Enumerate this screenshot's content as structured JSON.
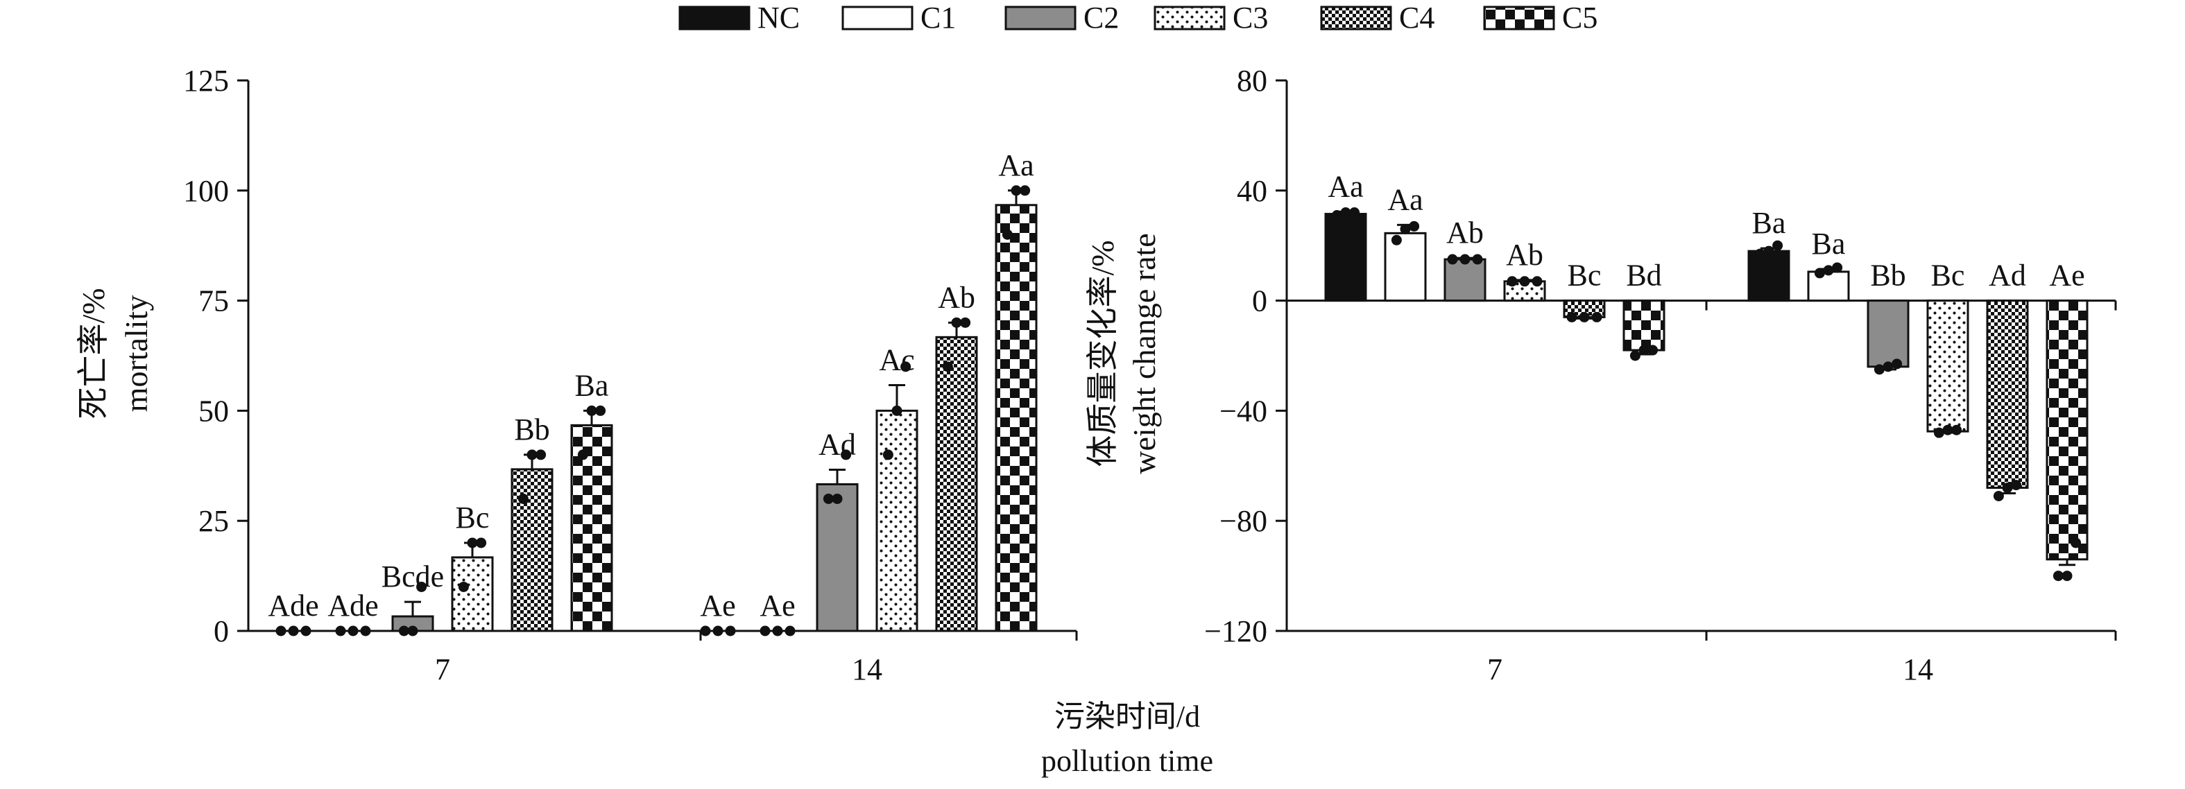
{
  "legend": {
    "entries": [
      {
        "label": "NC",
        "pattern": "solid-black"
      },
      {
        "label": "C1",
        "pattern": "white"
      },
      {
        "label": "C2",
        "pattern": "gray"
      },
      {
        "label": "C3",
        "pattern": "fine-dots"
      },
      {
        "label": "C4",
        "pattern": "fine-checker"
      },
      {
        "label": "C5",
        "pattern": "coarse-checker"
      }
    ]
  },
  "shared_xlabel": {
    "cn": "污染时间/d",
    "en": "pollution time"
  },
  "colors": {
    "ink": "#111111",
    "gray_fill": "#8c8c8c",
    "white": "#ffffff"
  },
  "chart_data": [
    {
      "type": "bar",
      "title": "",
      "categories": [
        "7",
        "14"
      ],
      "ylabel_cn": "死亡率/%",
      "ylabel_en": "mortality",
      "ylim": [
        0,
        125
      ],
      "yticks": [
        0,
        25,
        50,
        75,
        100,
        125
      ],
      "ytick_labels": [
        "0",
        "25",
        "50",
        "75",
        "100",
        "125"
      ],
      "series": [
        {
          "name": "NC",
          "values": [
            0,
            0
          ],
          "errors": [
            0,
            0
          ],
          "labels": [
            "Ade",
            "Ae"
          ],
          "points": [
            [
              0,
              0,
              0
            ],
            [
              0,
              0,
              0
            ]
          ]
        },
        {
          "name": "C1",
          "values": [
            0,
            0
          ],
          "errors": [
            0,
            0
          ],
          "labels": [
            "Ade",
            "Ae"
          ],
          "points": [
            [
              0,
              0,
              0
            ],
            [
              0,
              0,
              0
            ]
          ]
        },
        {
          "name": "C2",
          "values": [
            3.3,
            33.3
          ],
          "errors": [
            3.3,
            3.3
          ],
          "labels": [
            "Bcde",
            "Ad"
          ],
          "points": [
            [
              0,
              0,
              10
            ],
            [
              30,
              30,
              40
            ]
          ]
        },
        {
          "name": "C3",
          "values": [
            16.7,
            50
          ],
          "errors": [
            3.3,
            5.8
          ],
          "labels": [
            "Bc",
            "Ac"
          ],
          "points": [
            [
              10,
              20,
              20
            ],
            [
              40,
              50,
              60
            ]
          ]
        },
        {
          "name": "C4",
          "values": [
            36.7,
            66.7
          ],
          "errors": [
            3.3,
            3.3
          ],
          "labels": [
            "Bb",
            "Ab"
          ],
          "points": [
            [
              30,
              40,
              40
            ],
            [
              60,
              70,
              70
            ]
          ]
        },
        {
          "name": "C5",
          "values": [
            46.7,
            96.7
          ],
          "errors": [
            3.3,
            3.3
          ],
          "labels": [
            "Ba",
            "Aa"
          ],
          "points": [
            [
              40,
              50,
              50
            ],
            [
              90,
              100,
              100
            ]
          ]
        }
      ]
    },
    {
      "type": "bar",
      "title": "",
      "categories": [
        "7",
        "14"
      ],
      "ylabel_cn": "体质量变化率/%",
      "ylabel_en": "weight change rate",
      "ylim": [
        -120,
        80
      ],
      "yticks": [
        -120,
        -80,
        -40,
        0,
        40,
        80
      ],
      "ytick_labels": [
        "−120",
        "−80",
        "−40",
        "0",
        "40",
        "80"
      ],
      "series": [
        {
          "name": "NC",
          "values": [
            31.5,
            18
          ],
          "errors": [
            0.8,
            1
          ],
          "labels": [
            "Aa",
            "Ba"
          ],
          "points": [
            [
              31,
              32,
              32
            ],
            [
              17,
              18,
              20
            ]
          ]
        },
        {
          "name": "C1",
          "values": [
            24.5,
            10.5
          ],
          "errors": [
            3,
            1
          ],
          "labels": [
            "Aa",
            "Ba"
          ],
          "points": [
            [
              22,
              26,
              27
            ],
            [
              10,
              11,
              12
            ]
          ]
        },
        {
          "name": "C2",
          "values": [
            15,
            -24
          ],
          "errors": [
            0.5,
            1
          ],
          "labels": [
            "Ab",
            "Bb"
          ],
          "points": [
            [
              15,
              15,
              15
            ],
            [
              -25,
              -24,
              -23
            ]
          ]
        },
        {
          "name": "C3",
          "values": [
            7,
            -47.5
          ],
          "errors": [
            0.5,
            0.5
          ],
          "labels": [
            "Ab",
            "Bc"
          ],
          "points": [
            [
              7,
              7,
              7
            ],
            [
              -48,
              -47,
              -47
            ]
          ]
        },
        {
          "name": "C4",
          "values": [
            -6,
            -68
          ],
          "errors": [
            0.5,
            2
          ],
          "labels": [
            "Bc",
            "Ad"
          ],
          "points": [
            [
              -6,
              -6,
              -6
            ],
            [
              -71,
              -68,
              -67
            ]
          ]
        },
        {
          "name": "C5",
          "values": [
            -18,
            -94
          ],
          "errors": [
            1.5,
            2
          ],
          "labels": [
            "Bd",
            "Ae"
          ],
          "points": [
            [
              -20,
              -18,
              -18
            ],
            [
              -100,
              -100,
              -88
            ]
          ]
        }
      ]
    }
  ]
}
